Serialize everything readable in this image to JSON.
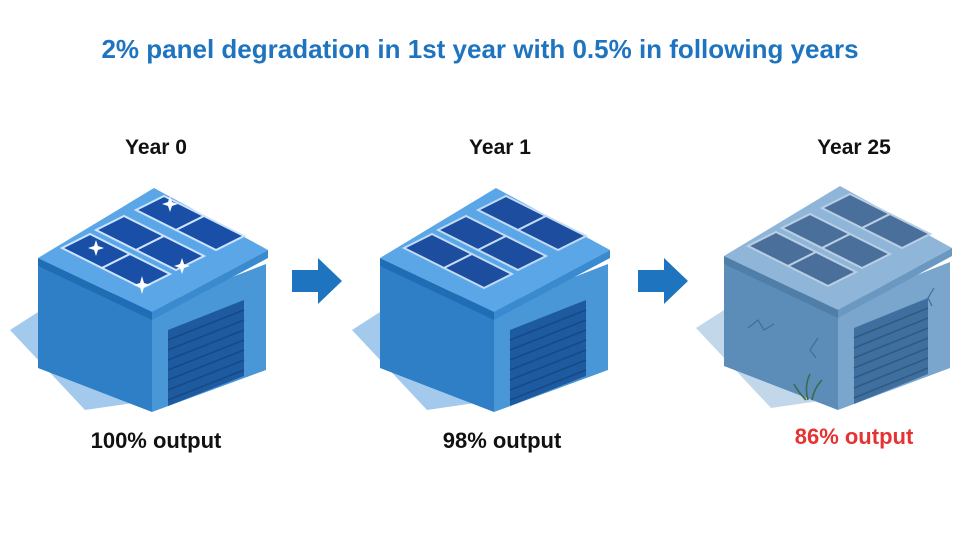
{
  "title": "2% panel degradation in 1st year with 0.5% in following years",
  "stages": [
    {
      "year_label": "Year 0",
      "output_label": "100% output",
      "condition": "new"
    },
    {
      "year_label": "Year 1",
      "output_label": "98% output",
      "condition": "slightly-used"
    },
    {
      "year_label": "Year 25",
      "output_label": "86% output",
      "condition": "aged"
    }
  ],
  "colors": {
    "title": "#1f74c0",
    "output_normal": "#111111",
    "output_degraded": "#e63232",
    "arrow": "#1f74c0",
    "building": "#2f7fc6",
    "building_aged": "#5b8db8",
    "panel": "#1a4fa8",
    "shadow": "#8cbde8"
  },
  "icons": [
    "garage-building-icon",
    "solar-panel-icon",
    "sparkle-icon",
    "right-arrow-icon",
    "weed-icon"
  ]
}
